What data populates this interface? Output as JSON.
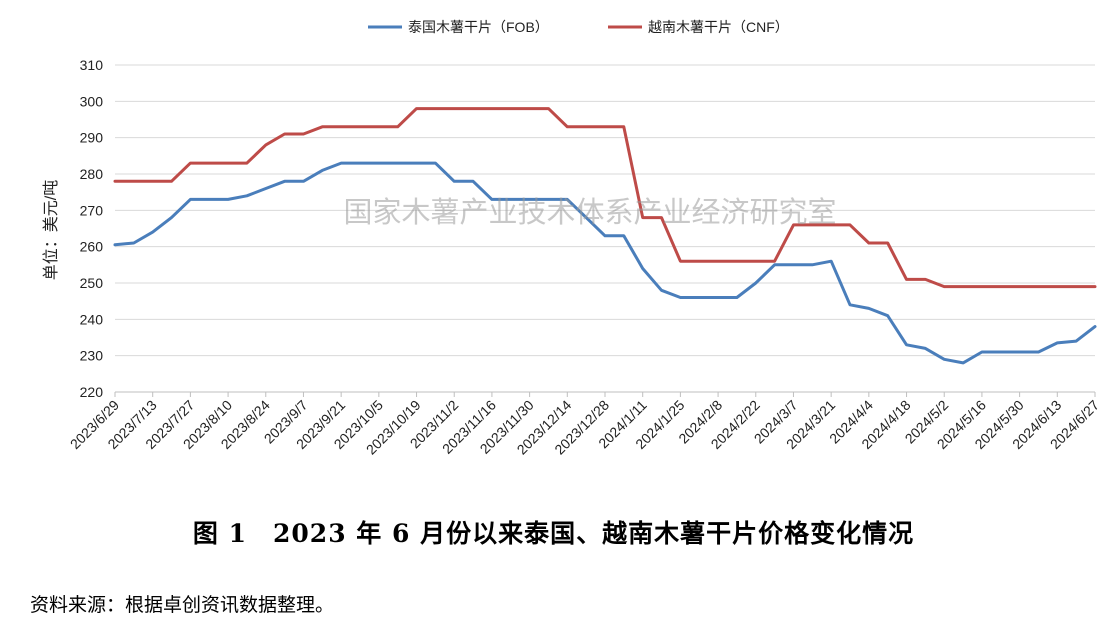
{
  "chart_data": {
    "type": "line",
    "ylabel": "单位：美元/吨",
    "ylim": [
      220,
      310
    ],
    "yticks": [
      220,
      230,
      240,
      250,
      260,
      270,
      280,
      290,
      300,
      310
    ],
    "legend_position": "top",
    "grid": true,
    "watermark": "国家木薯产业技术体系产业经济研究室",
    "x": [
      "2023/6/29",
      "2023/7/6",
      "2023/7/13",
      "2023/7/20",
      "2023/7/27",
      "2023/8/3",
      "2023/8/10",
      "2023/8/17",
      "2023/8/24",
      "2023/8/31",
      "2023/9/7",
      "2023/9/14",
      "2023/9/21",
      "2023/9/28",
      "2023/10/5",
      "2023/10/12",
      "2023/10/19",
      "2023/10/26",
      "2023/11/2",
      "2023/11/9",
      "2023/11/16",
      "2023/11/23",
      "2023/11/30",
      "2023/12/7",
      "2023/12/14",
      "2023/12/21",
      "2023/12/28",
      "2024/1/4",
      "2024/1/11",
      "2024/1/18",
      "2024/1/25",
      "2024/2/1",
      "2024/2/8",
      "2024/2/15",
      "2024/2/22",
      "2024/2/29",
      "2024/3/7",
      "2024/3/14",
      "2024/3/21",
      "2024/3/28",
      "2024/4/4",
      "2024/4/11",
      "2024/4/18",
      "2024/4/25",
      "2024/5/2",
      "2024/5/9",
      "2024/5/16",
      "2024/5/23",
      "2024/5/30",
      "2024/6/6",
      "2024/6/13",
      "2024/6/20",
      "2024/6/27"
    ],
    "xtick_labels": [
      "2023/6/29",
      "2023/7/13",
      "2023/7/27",
      "2023/8/10",
      "2023/8/24",
      "2023/9/7",
      "2023/9/21",
      "2023/10/5",
      "2023/10/19",
      "2023/11/2",
      "2023/11/16",
      "2023/11/30",
      "2023/12/14",
      "2023/12/28",
      "2024/1/11",
      "2024/1/25",
      "2024/2/8",
      "2024/2/22",
      "2024/3/7",
      "2024/3/21",
      "2024/4/4",
      "2024/4/18",
      "2024/5/2",
      "2024/5/16",
      "2024/5/30",
      "2024/6/13",
      "2024/6/27"
    ],
    "series": [
      {
        "name": "泰国木薯干片（FOB）",
        "color": "#4a7ebb",
        "values": [
          260.5,
          261,
          264,
          268,
          273,
          273,
          273,
          274,
          276,
          278,
          278,
          281,
          283,
          283,
          283,
          283,
          283,
          283,
          278,
          278,
          273,
          273,
          273,
          273,
          273,
          268,
          263,
          263,
          254,
          248,
          246,
          246,
          246,
          246,
          250,
          255,
          255,
          255,
          256,
          244,
          243,
          241,
          233,
          232,
          229,
          228,
          231,
          231,
          231,
          231,
          233.5,
          234,
          238
        ]
      },
      {
        "name": "越南木薯干片（CNF）",
        "color": "#be4b48",
        "values": [
          278,
          278,
          278,
          278,
          283,
          283,
          283,
          283,
          288,
          291,
          291,
          293,
          293,
          293,
          293,
          293,
          298,
          298,
          298,
          298,
          298,
          298,
          298,
          298,
          293,
          293,
          293,
          293,
          268,
          268,
          256,
          256,
          256,
          256,
          256,
          256,
          266,
          266,
          266,
          266,
          261,
          261,
          251,
          251,
          249,
          249,
          249,
          249,
          249,
          249,
          249,
          249,
          249
        ]
      }
    ]
  },
  "caption": "图 1　2023 年 6 月份以来泰国、越南木薯干片价格变化情况",
  "source": "资料来源：根据卓创资讯数据整理。"
}
